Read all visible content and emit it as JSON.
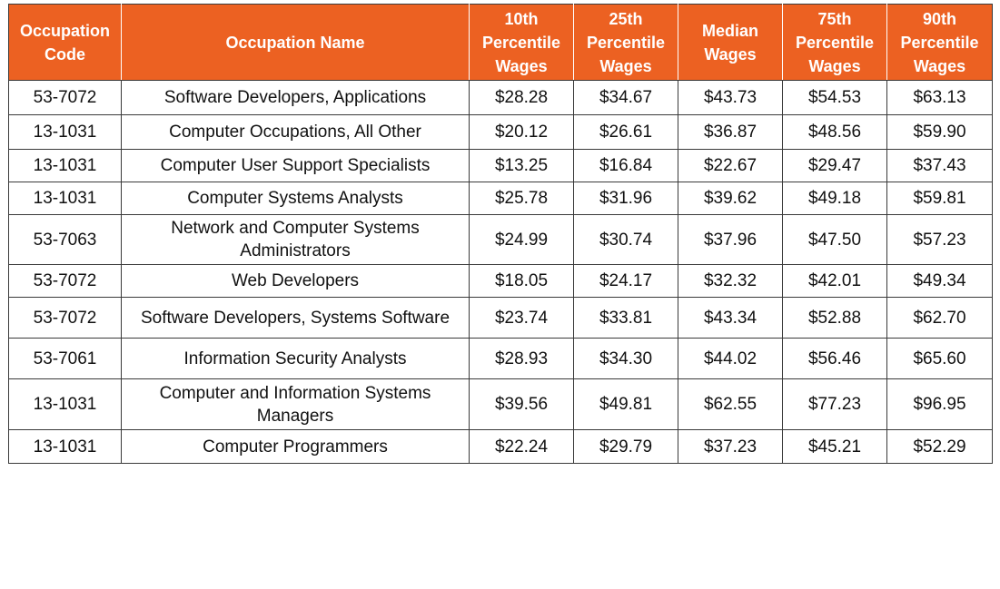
{
  "colors": {
    "header_bg": "#ec6122",
    "header_text": "#ffffff",
    "border": "#3a3a3a"
  },
  "table": {
    "headers": [
      [
        "Occupation",
        "Code"
      ],
      [
        "Occupation Name"
      ],
      [
        "10th",
        "Percentile",
        "Wages"
      ],
      [
        "25th",
        "Percentile",
        "Wages"
      ],
      [
        "Median",
        "Wages"
      ],
      [
        "75th",
        "Percentile",
        "Wages"
      ],
      [
        "90th",
        "Percentile",
        "Wages"
      ]
    ],
    "rows": [
      [
        "53-7072",
        "Software Developers, Applications",
        "$28.28",
        "$34.67",
        "$43.73",
        "$54.53",
        "$63.13"
      ],
      [
        "13-1031",
        "Computer Occupations, All Other",
        "$20.12",
        "$26.61",
        "$36.87",
        "$48.56",
        "$59.90"
      ],
      [
        "13-1031",
        "Computer User Support Specialists",
        "$13.25",
        "$16.84",
        "$22.67",
        "$29.47",
        "$37.43"
      ],
      [
        "13-1031",
        "Computer Systems Analysts",
        "$25.78",
        "$31.96",
        "$39.62",
        "$49.18",
        "$59.81"
      ],
      [
        "53-7063",
        "Network and Computer Systems Administrators",
        "$24.99",
        "$30.74",
        "$37.96",
        "$47.50",
        "$57.23"
      ],
      [
        "53-7072",
        "Web Developers",
        "$18.05",
        "$24.17",
        "$32.32",
        "$42.01",
        "$49.34"
      ],
      [
        "53-7072",
        "Software Developers, Systems Software",
        "$23.74",
        "$33.81",
        "$43.34",
        "$52.88",
        "$62.70"
      ],
      [
        "53-7061",
        "Information Security Analysts",
        "$28.93",
        "$34.30",
        "$44.02",
        "$56.46",
        "$65.60"
      ],
      [
        "13-1031",
        "Computer and Information Systems Managers",
        "$39.56",
        "$49.81",
        "$62.55",
        "$77.23",
        "$96.95"
      ],
      [
        "13-1031",
        "Computer Programmers",
        "$22.24",
        "$29.79",
        "$37.23",
        "$45.21",
        "$52.29"
      ]
    ]
  }
}
